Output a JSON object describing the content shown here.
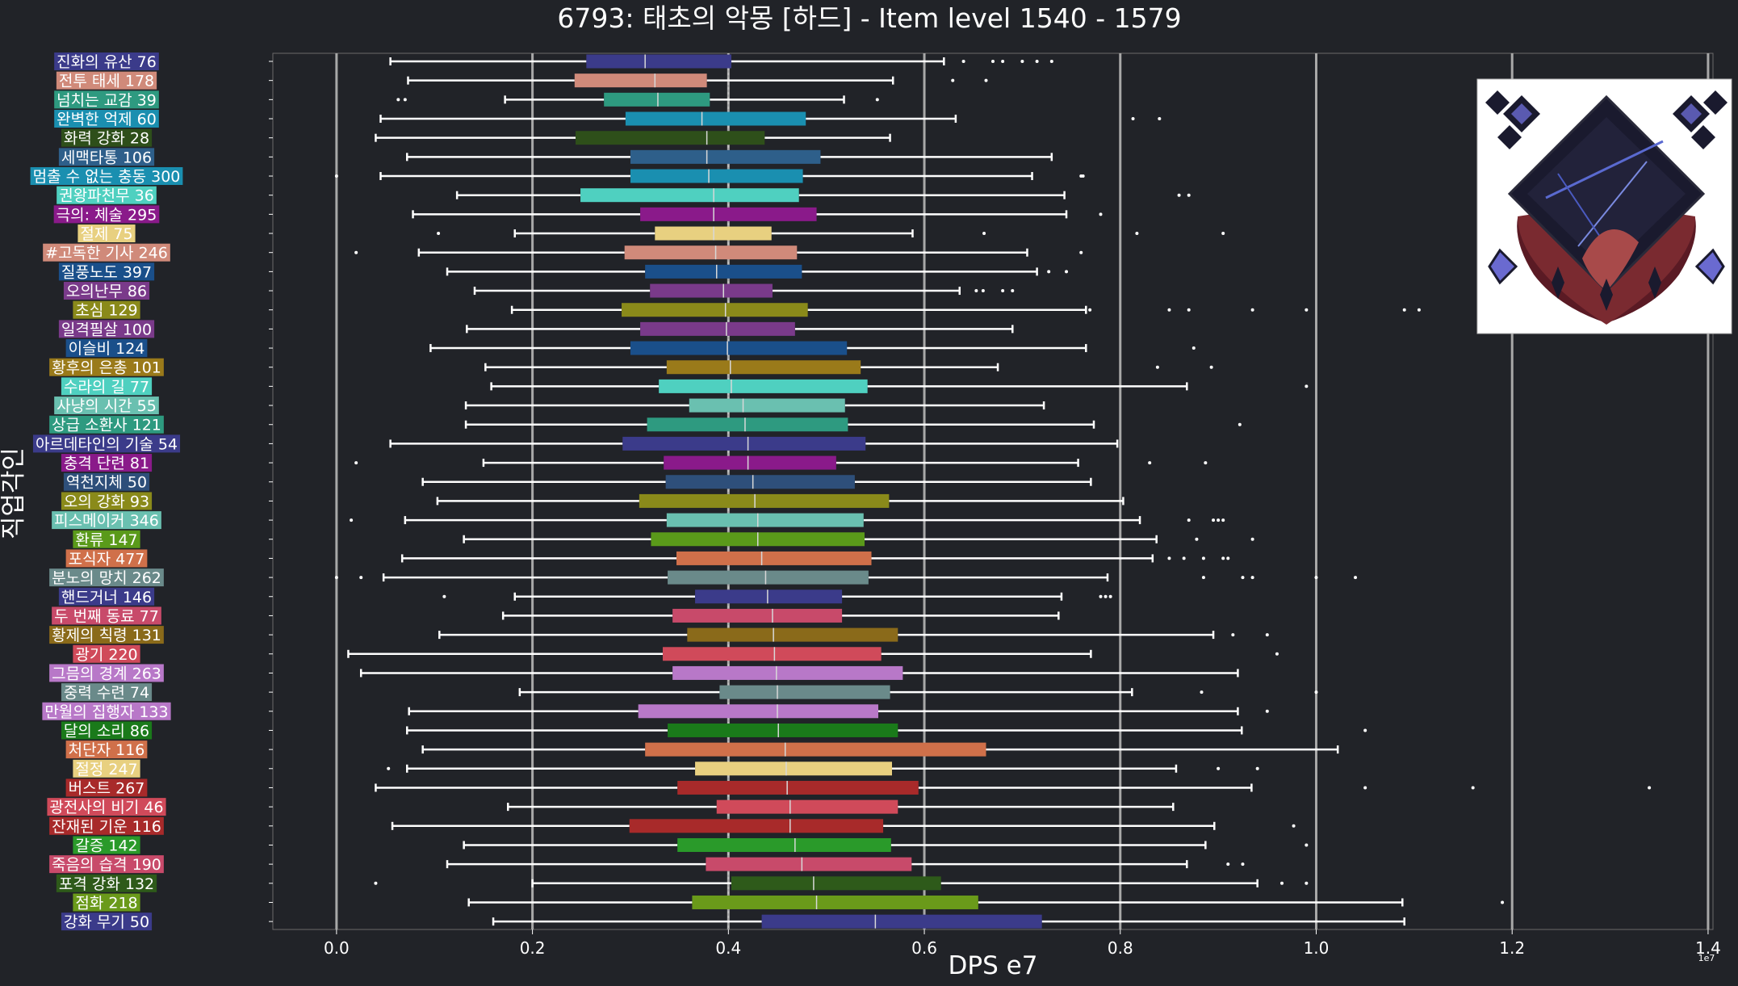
{
  "chart_data": {
    "type": "boxplot",
    "title": "6793: 태초의 악몽 [하드] - Item level 1540 - 1579",
    "xlabel": "DPS e7",
    "ylabel": "직업각인",
    "x_exponent_label": "1e7",
    "xlim": [
      -0.065,
      1.405
    ],
    "xticks": [
      0.0,
      0.2,
      0.4,
      0.6,
      0.8,
      1.0,
      1.2,
      1.4
    ],
    "xtick_labels": [
      "0.0",
      "0.2",
      "0.4",
      "0.6",
      "0.8",
      "1.0",
      "1.2",
      "1.4"
    ],
    "vertical_grid": true,
    "median_line": 0.4,
    "categories": [
      {
        "label": "진화의 유산 76",
        "color": "#3b3b8a",
        "whisker_low": 0.055,
        "q1": 0.255,
        "median": 0.315,
        "q3": 0.403,
        "whisker_high": 0.62,
        "outliers": [
          0.64,
          0.67,
          0.68,
          0.7,
          0.715,
          0.73
        ]
      },
      {
        "label": "전투 태세 178",
        "color": "#d08a7a",
        "whisker_low": 0.073,
        "q1": 0.243,
        "median": 0.325,
        "q3": 0.378,
        "whisker_high": 0.568,
        "outliers": [
          0.629,
          0.663
        ]
      },
      {
        "label": "넘치는 교감 39",
        "color": "#2e9a80",
        "whisker_low": 0.172,
        "q1": 0.273,
        "median": 0.328,
        "q3": 0.381,
        "whisker_high": 0.518,
        "outliers": [
          0.063,
          0.07,
          0.552
        ]
      },
      {
        "label": "완벽한 억제 60",
        "color": "#1a8fb0",
        "whisker_low": 0.045,
        "q1": 0.295,
        "median": 0.373,
        "q3": 0.479,
        "whisker_high": 0.632,
        "outliers": [
          0.813,
          0.84
        ]
      },
      {
        "label": "화력 강화 28",
        "color": "#2e4f1a",
        "whisker_low": 0.04,
        "q1": 0.244,
        "median": 0.378,
        "q3": 0.437,
        "whisker_high": 0.565,
        "outliers": []
      },
      {
        "label": "세맥타통 106",
        "color": "#2e5f8a",
        "whisker_low": 0.072,
        "q1": 0.3,
        "median": 0.378,
        "q3": 0.494,
        "whisker_high": 0.73,
        "outliers": []
      },
      {
        "label": "멈출 수 없는 충동 300",
        "color": "#1a8fb0",
        "whisker_low": 0.045,
        "q1": 0.3,
        "median": 0.38,
        "q3": 0.476,
        "whisker_high": 0.71,
        "outliers": [
          0.0,
          0.76,
          0.762
        ]
      },
      {
        "label": "권왕파천무 36",
        "color": "#4fd0c0",
        "whisker_low": 0.123,
        "q1": 0.249,
        "median": 0.385,
        "q3": 0.472,
        "whisker_high": 0.743,
        "outliers": [
          0.86,
          0.87
        ]
      },
      {
        "label": "극의: 체술 295",
        "color": "#8a1a8a",
        "whisker_low": 0.078,
        "q1": 0.31,
        "median": 0.385,
        "q3": 0.49,
        "whisker_high": 0.745,
        "outliers": [
          0.78
        ]
      },
      {
        "label": "절제 75",
        "color": "#e8d080",
        "whisker_low": 0.182,
        "q1": 0.325,
        "median": 0.385,
        "q3": 0.444,
        "whisker_high": 0.588,
        "outliers": [
          0.104,
          0.661,
          0.817,
          0.905
        ]
      },
      {
        "label": "#고독한 기사 246",
        "color": "#d08a7a",
        "whisker_low": 0.084,
        "q1": 0.294,
        "median": 0.387,
        "q3": 0.47,
        "whisker_high": 0.705,
        "outliers": [
          0.02,
          0.76
        ]
      },
      {
        "label": "질풍노도 397",
        "color": "#1a4f8a",
        "whisker_low": 0.113,
        "q1": 0.315,
        "median": 0.388,
        "q3": 0.475,
        "whisker_high": 0.715,
        "outliers": [
          0.727,
          0.745
        ]
      },
      {
        "label": "오의난무 86",
        "color": "#7a3a8a",
        "whisker_low": 0.141,
        "q1": 0.32,
        "median": 0.395,
        "q3": 0.445,
        "whisker_high": 0.636,
        "outliers": [
          0.653,
          0.66,
          0.68,
          0.69
        ]
      },
      {
        "label": "초심 129",
        "color": "#8a8a1a",
        "whisker_low": 0.179,
        "q1": 0.291,
        "median": 0.397,
        "q3": 0.481,
        "whisker_high": 0.765,
        "outliers": [
          0.769,
          0.85,
          0.87,
          0.935,
          0.99,
          1.09,
          1.105
        ]
      },
      {
        "label": "일격필살 100",
        "color": "#7a3a8a",
        "whisker_low": 0.133,
        "q1": 0.31,
        "median": 0.398,
        "q3": 0.468,
        "whisker_high": 0.69,
        "outliers": []
      },
      {
        "label": "이슬비 124",
        "color": "#1a4f8a",
        "whisker_low": 0.096,
        "q1": 0.3,
        "median": 0.399,
        "q3": 0.521,
        "whisker_high": 0.765,
        "outliers": [
          0.875
        ]
      },
      {
        "label": "황후의 은총 101",
        "color": "#9a7a1a",
        "whisker_low": 0.152,
        "q1": 0.337,
        "median": 0.402,
        "q3": 0.535,
        "whisker_high": 0.675,
        "outliers": [
          0.838,
          0.893
        ]
      },
      {
        "label": "수라의 길 77",
        "color": "#4fd0c0",
        "whisker_low": 0.158,
        "q1": 0.329,
        "median": 0.403,
        "q3": 0.542,
        "whisker_high": 0.868,
        "outliers": [
          0.99
        ]
      },
      {
        "label": "사냥의 시간 55",
        "color": "#6ac0b0",
        "whisker_low": 0.132,
        "q1": 0.36,
        "median": 0.415,
        "q3": 0.519,
        "whisker_high": 0.722,
        "outliers": []
      },
      {
        "label": "상급 소환사 121",
        "color": "#2e9a80",
        "whisker_low": 0.132,
        "q1": 0.317,
        "median": 0.417,
        "q3": 0.522,
        "whisker_high": 0.773,
        "outliers": [
          0.922
        ]
      },
      {
        "label": "아르데타인의 기술 54",
        "color": "#3b3b8a",
        "whisker_low": 0.055,
        "q1": 0.292,
        "median": 0.42,
        "q3": 0.54,
        "whisker_high": 0.797,
        "outliers": []
      },
      {
        "label": "충격 단련 81",
        "color": "#8a1a8a",
        "whisker_low": 0.15,
        "q1": 0.334,
        "median": 0.42,
        "q3": 0.51,
        "whisker_high": 0.757,
        "outliers": [
          0.02,
          0.83,
          0.887
        ]
      },
      {
        "label": "역천지체 50",
        "color": "#2e4f7a",
        "whisker_low": 0.088,
        "q1": 0.336,
        "median": 0.425,
        "q3": 0.529,
        "whisker_high": 0.77,
        "outliers": []
      },
      {
        "label": "오의 강화 93",
        "color": "#8a8a1a",
        "whisker_low": 0.103,
        "q1": 0.309,
        "median": 0.427,
        "q3": 0.564,
        "whisker_high": 0.803,
        "outliers": []
      },
      {
        "label": "피스메이커 346",
        "color": "#6ac0b0",
        "whisker_low": 0.07,
        "q1": 0.337,
        "median": 0.43,
        "q3": 0.538,
        "whisker_high": 0.82,
        "outliers": [
          0.015,
          0.87,
          0.895,
          0.9,
          0.905
        ]
      },
      {
        "label": "환류 147",
        "color": "#5a9a1a",
        "whisker_low": 0.13,
        "q1": 0.321,
        "median": 0.43,
        "q3": 0.539,
        "whisker_high": 0.837,
        "outliers": [
          0.878,
          0.935
        ]
      },
      {
        "label": "포식자 477",
        "color": "#d0704a",
        "whisker_low": 0.067,
        "q1": 0.347,
        "median": 0.434,
        "q3": 0.546,
        "whisker_high": 0.833,
        "outliers": [
          0.85,
          0.865,
          0.885,
          0.905,
          0.91
        ]
      },
      {
        "label": "분노의 망치 262",
        "color": "#6a8a8a",
        "whisker_low": 0.048,
        "q1": 0.338,
        "median": 0.438,
        "q3": 0.543,
        "whisker_high": 0.787,
        "outliers": [
          0.0,
          0.025,
          0.885,
          0.925,
          0.935,
          1.0,
          1.04
        ]
      },
      {
        "label": "핸드거너 146",
        "color": "#3b3b8a",
        "whisker_low": 0.182,
        "q1": 0.366,
        "median": 0.44,
        "q3": 0.516,
        "whisker_high": 0.74,
        "outliers": [
          0.11,
          0.78,
          0.785,
          0.79
        ]
      },
      {
        "label": "두 번째 동료 77",
        "color": "#c84a6a",
        "whisker_low": 0.17,
        "q1": 0.343,
        "median": 0.445,
        "q3": 0.516,
        "whisker_high": 0.737,
        "outliers": []
      },
      {
        "label": "황제의 칙령 131",
        "color": "#8a6a1a",
        "whisker_low": 0.105,
        "q1": 0.358,
        "median": 0.446,
        "q3": 0.573,
        "whisker_high": 0.895,
        "outliers": [
          0.915,
          0.95
        ]
      },
      {
        "label": "광기 220",
        "color": "#d04a5a",
        "whisker_low": 0.012,
        "q1": 0.333,
        "median": 0.447,
        "q3": 0.556,
        "whisker_high": 0.77,
        "outliers": [
          0.96
        ]
      },
      {
        "label": "그믐의 경계 263",
        "color": "#b878c8",
        "whisker_low": 0.025,
        "q1": 0.343,
        "median": 0.449,
        "q3": 0.578,
        "whisker_high": 0.92,
        "outliers": []
      },
      {
        "label": "중력 수련 74",
        "color": "#6a8a8a",
        "whisker_low": 0.187,
        "q1": 0.391,
        "median": 0.45,
        "q3": 0.565,
        "whisker_high": 0.812,
        "outliers": [
          0.883,
          1.0
        ]
      },
      {
        "label": "만월의 집행자 133",
        "color": "#b878c8",
        "whisker_low": 0.074,
        "q1": 0.308,
        "median": 0.45,
        "q3": 0.553,
        "whisker_high": 0.92,
        "outliers": [
          0.95
        ]
      },
      {
        "label": "달의 소리 86",
        "color": "#1a7a1a",
        "whisker_low": 0.072,
        "q1": 0.338,
        "median": 0.451,
        "q3": 0.573,
        "whisker_high": 0.924,
        "outliers": [
          1.05
        ]
      },
      {
        "label": "처단자 116",
        "color": "#d0704a",
        "whisker_low": 0.088,
        "q1": 0.315,
        "median": 0.458,
        "q3": 0.663,
        "whisker_high": 1.022,
        "outliers": []
      },
      {
        "label": "절정 247",
        "color": "#e8d080",
        "whisker_low": 0.072,
        "q1": 0.366,
        "median": 0.459,
        "q3": 0.567,
        "whisker_high": 0.857,
        "outliers": [
          0.053,
          0.9,
          0.94
        ]
      },
      {
        "label": "버스트 267",
        "color": "#a82a2a",
        "whisker_low": 0.04,
        "q1": 0.348,
        "median": 0.46,
        "q3": 0.594,
        "whisker_high": 0.934,
        "outliers": [
          1.05,
          1.16,
          1.34
        ]
      },
      {
        "label": "광전사의 비기 46",
        "color": "#d04a5a",
        "whisker_low": 0.175,
        "q1": 0.388,
        "median": 0.463,
        "q3": 0.573,
        "whisker_high": 0.854,
        "outliers": []
      },
      {
        "label": "잔재된 기운 116",
        "color": "#a82a2a",
        "whisker_low": 0.057,
        "q1": 0.299,
        "median": 0.463,
        "q3": 0.558,
        "whisker_high": 0.896,
        "outliers": [
          0.977
        ]
      },
      {
        "label": "갈증 142",
        "color": "#2a9a2a",
        "whisker_low": 0.13,
        "q1": 0.348,
        "median": 0.468,
        "q3": 0.566,
        "whisker_high": 0.887,
        "outliers": [
          0.99
        ]
      },
      {
        "label": "죽음의 습격 190",
        "color": "#c84a6a",
        "whisker_low": 0.113,
        "q1": 0.377,
        "median": 0.475,
        "q3": 0.587,
        "whisker_high": 0.868,
        "outliers": [
          0.91,
          0.925
        ]
      },
      {
        "label": "포격 강화 132",
        "color": "#2e5a1a",
        "whisker_low": 0.2,
        "q1": 0.403,
        "median": 0.487,
        "q3": 0.617,
        "whisker_high": 0.94,
        "outliers": [
          0.04,
          0.965,
          0.99
        ]
      },
      {
        "label": "점화 218",
        "color": "#6a9a1a",
        "whisker_low": 0.135,
        "q1": 0.363,
        "median": 0.49,
        "q3": 0.655,
        "whisker_high": 1.088,
        "outliers": [
          1.19
        ]
      },
      {
        "label": "강화 무기 50",
        "color": "#3b3b8a",
        "whisker_low": 0.16,
        "q1": 0.434,
        "median": 0.55,
        "q3": 0.72,
        "whisker_high": 1.09,
        "outliers": []
      }
    ]
  }
}
